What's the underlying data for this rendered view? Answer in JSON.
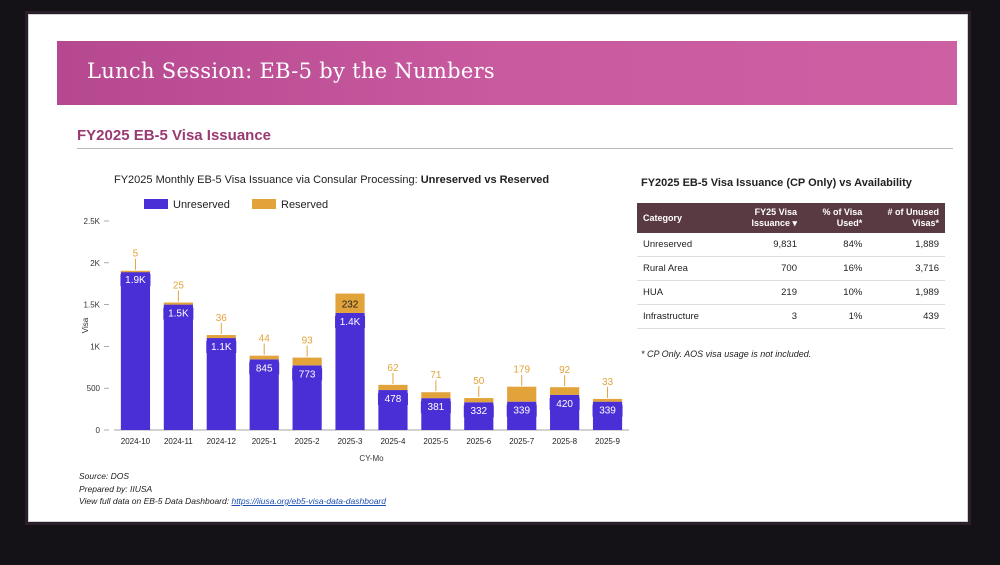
{
  "banner": {
    "title": "Lunch Session: EB-5 by the Numbers"
  },
  "section": {
    "title": "FY2025 EB-5 Visa Issuance"
  },
  "chart_data": {
    "type": "bar",
    "stacked": true,
    "title_prefix": "FY2025 Monthly EB-5 Visa Issuance via Consular Processing: ",
    "title_bold": "Unreserved vs Reserved",
    "xlabel": "CY-Mo",
    "ylabel": "Visa",
    "ylim": [
      0,
      2500
    ],
    "yticks": [
      0,
      500,
      1000,
      1500,
      2000,
      2500
    ],
    "ytick_labels": [
      "0",
      "500",
      "1K",
      "1.5K",
      "2K",
      "2.5K"
    ],
    "grid": false,
    "legend_position": "top-left",
    "categories": [
      "2024-10",
      "2024-11",
      "2024-12",
      "2025-1",
      "2025-2",
      "2025-3",
      "2025-4",
      "2025-5",
      "2025-6",
      "2025-7",
      "2025-8",
      "2025-9"
    ],
    "series": [
      {
        "name": "Unreserved",
        "color": "#4b2fd6",
        "values": [
          1900,
          1500,
          1100,
          845,
          773,
          1400,
          478,
          381,
          332,
          339,
          420,
          339
        ],
        "labels": [
          "1.9K",
          "1.5K",
          "1.1K",
          "845",
          "773",
          "1.4K",
          "478",
          "381",
          "332",
          "339",
          "420",
          "339"
        ]
      },
      {
        "name": "Reserved",
        "color": "#e2a33a",
        "values": [
          5,
          25,
          36,
          44,
          93,
          232,
          62,
          71,
          50,
          179,
          92,
          33
        ],
        "labels": [
          "5",
          "25",
          "36",
          "44",
          "93",
          "232",
          "62",
          "71",
          "50",
          "179",
          "92",
          "33"
        ]
      }
    ]
  },
  "footer": {
    "source": "Source: DOS",
    "prepared": "Prepared by: IIUSA",
    "view_prefix": "View full data on EB-5 Data Dashboard: ",
    "link": "https://iiusa.org/eb5-visa-data-dashboard"
  },
  "table": {
    "title_prefix": "FY2025 EB-5 Visa Issuance ",
    "title_bold": "(CP Only) vs Availability",
    "headers": [
      "Category",
      "FY25 Visa Issuance ▾",
      "% of Visa Used*",
      "# of Unused Visas*"
    ],
    "rows": [
      [
        "Unreserved",
        "9,831",
        "84%",
        "1,889"
      ],
      [
        "Rural Area",
        "700",
        "16%",
        "3,716"
      ],
      [
        "HUA",
        "219",
        "10%",
        "1,989"
      ],
      [
        "Infrastructure",
        "3",
        "1%",
        "439"
      ]
    ],
    "note": "* CP Only. AOS visa usage is not included."
  }
}
